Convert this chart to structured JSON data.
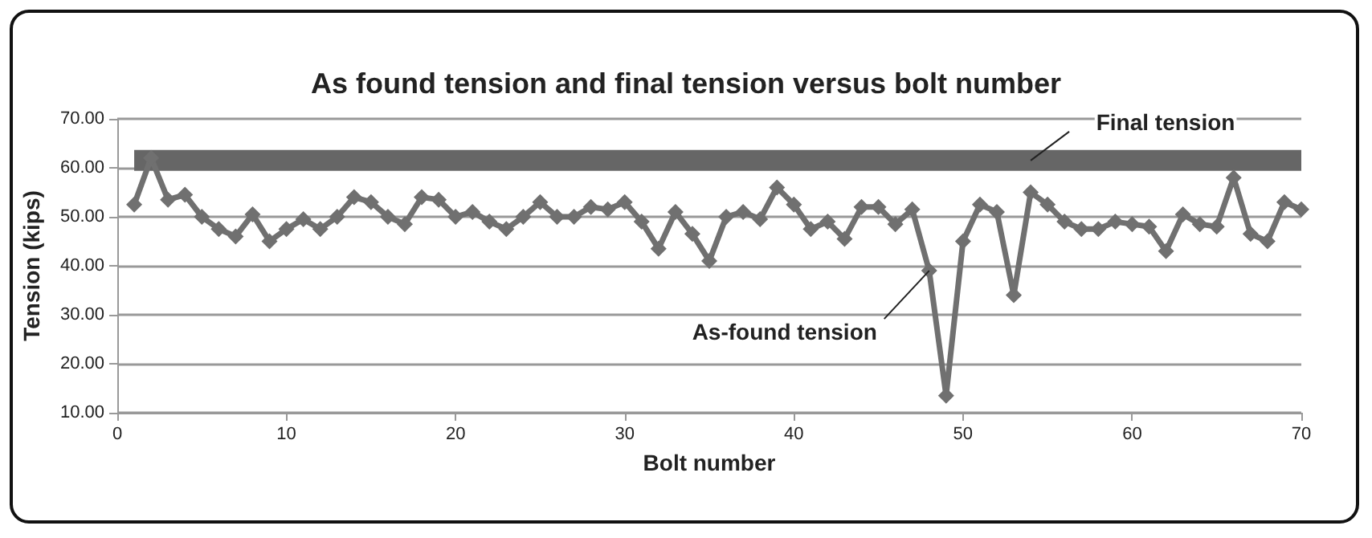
{
  "chart_data": {
    "type": "line",
    "title": "As found tension and final tension versus bolt number",
    "xlabel": "Bolt number",
    "ylabel": "Tension (kips)",
    "x": [
      1,
      2,
      3,
      4,
      5,
      6,
      7,
      8,
      9,
      10,
      11,
      12,
      13,
      14,
      15,
      16,
      17,
      18,
      19,
      20,
      21,
      22,
      23,
      24,
      25,
      26,
      27,
      28,
      29,
      30,
      31,
      32,
      33,
      34,
      35,
      36,
      37,
      38,
      39,
      40,
      41,
      42,
      43,
      44,
      45,
      46,
      47,
      48,
      49,
      50,
      51,
      52,
      53,
      54,
      55,
      56,
      57,
      58,
      59,
      60,
      61,
      62,
      63,
      64,
      65,
      66,
      67,
      68,
      69,
      70
    ],
    "series": [
      {
        "name": "As-found tension",
        "color": "#707070",
        "marker": "diamond",
        "values": [
          52.5,
          62,
          53.5,
          54.5,
          50,
          47.5,
          46,
          50.5,
          45,
          47.5,
          49.5,
          47.5,
          50,
          54,
          53,
          50,
          48.5,
          54,
          53.5,
          50,
          51,
          49,
          47.5,
          50,
          53,
          50,
          50,
          52,
          51.5,
          53,
          49,
          43.5,
          51,
          46.5,
          41,
          50,
          51,
          49.5,
          56,
          52.5,
          47.5,
          49,
          45.5,
          52,
          52,
          48.5,
          51.5,
          39,
          13.5,
          45,
          52.5,
          51,
          34,
          55,
          52.5,
          49,
          47.5,
          47.5,
          49,
          48.5,
          48,
          43,
          50.5,
          48.5,
          48,
          58,
          46.5,
          45,
          53,
          51.5
        ]
      },
      {
        "name": "Final tension",
        "color": "#666666",
        "marker": "none",
        "values": [
          61.5,
          61.5,
          61.5,
          61.5,
          61.5,
          61.5,
          61.5,
          61.5,
          61.5,
          61.5,
          61.5,
          61.5,
          61.5,
          61.5,
          61.5,
          61.5,
          61.5,
          61.5,
          61.5,
          61.5,
          61.5,
          61.5,
          61.5,
          61.5,
          61.5,
          61.5,
          61.5,
          61.5,
          61.5,
          61.5,
          61.5,
          61.5,
          61.5,
          61.5,
          61.5,
          61.5,
          61.5,
          61.5,
          61.5,
          61.5,
          61.5,
          61.5,
          61.5,
          61.5,
          61.5,
          61.5,
          61.5,
          61.5,
          61.5,
          61.5,
          61.5,
          61.5,
          61.5,
          61.5,
          61.5,
          61.5,
          61.5,
          61.5,
          61.5,
          61.5,
          61.5,
          61.5,
          61.5,
          61.5,
          61.5,
          61.5,
          61.5,
          61.5,
          61.5,
          61.5
        ]
      }
    ],
    "xlim": [
      0,
      70
    ],
    "xticks": [
      0,
      10,
      20,
      30,
      40,
      50,
      60,
      70
    ],
    "ylim": [
      10,
      70
    ],
    "yticks": [
      {
        "value": 10,
        "label": "10.00"
      },
      {
        "value": 20,
        "label": "20.00"
      },
      {
        "value": 30,
        "label": "30.00"
      },
      {
        "value": 40,
        "label": "40.00"
      },
      {
        "value": 50,
        "label": "50.00"
      },
      {
        "value": 60,
        "label": "60.00"
      },
      {
        "value": 70,
        "label": "70.00"
      }
    ],
    "grid": "y",
    "legend": false,
    "line_style": "solid"
  }
}
